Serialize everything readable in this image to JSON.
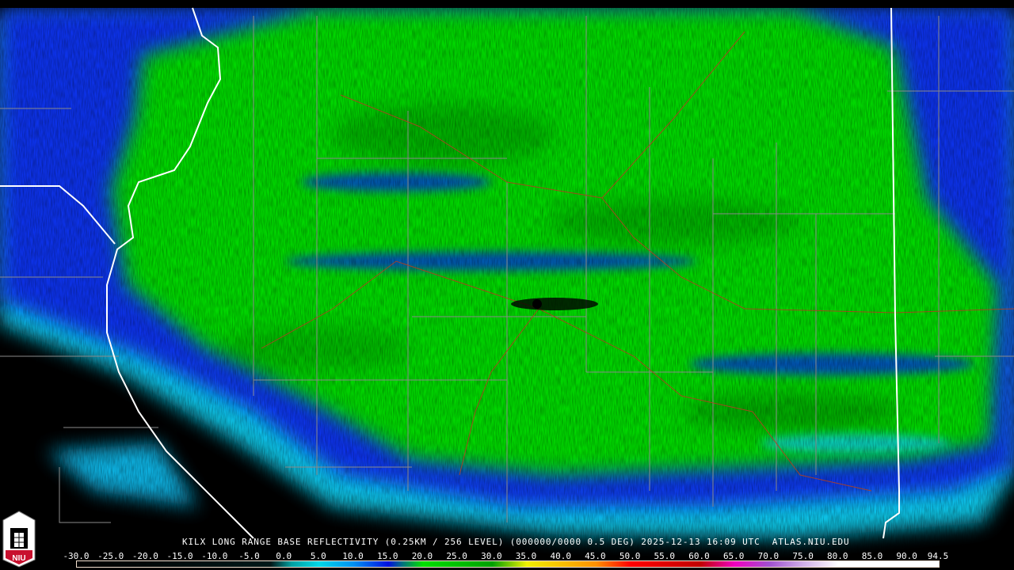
{
  "product_title": "KILX LONG RANGE BASE REFLECTIVITY (0.25KM / 256 LEVEL) (000000/0000 0.5 DEG) 2025-12-13 16:09 UTC  ATLAS.NIU.EDU",
  "logo": {
    "text": "NIU",
    "icon": "niu-castle-logo"
  },
  "colorbar": {
    "labels": [
      "-30.0",
      "-25.0",
      "-20.0",
      "-15.0",
      "-10.0",
      "-5.0",
      "0.0",
      "5.0",
      "10.0",
      "15.0",
      "20.0",
      "25.0",
      "30.0",
      "35.0",
      "40.0",
      "45.0",
      "50.0",
      "55.0",
      "60.0",
      "65.0",
      "70.0",
      "75.0",
      "80.0",
      "85.0",
      "90.0",
      "94.5"
    ],
    "min": -30.0,
    "max": 94.5,
    "stops": [
      {
        "value": -30,
        "color": "#000000"
      },
      {
        "value": -2,
        "color": "#001818"
      },
      {
        "value": 1,
        "color": "#00a0a0"
      },
      {
        "value": 5,
        "color": "#00d8e8"
      },
      {
        "value": 10,
        "color": "#0090f0"
      },
      {
        "value": 15,
        "color": "#0010e0"
      },
      {
        "value": 17,
        "color": "#007080"
      },
      {
        "value": 20,
        "color": "#00e000"
      },
      {
        "value": 30,
        "color": "#00a000"
      },
      {
        "value": 35,
        "color": "#f0f000"
      },
      {
        "value": 45,
        "color": "#ff9000"
      },
      {
        "value": 50,
        "color": "#ff0000"
      },
      {
        "value": 60,
        "color": "#c00000"
      },
      {
        "value": 65,
        "color": "#f000c0"
      },
      {
        "value": 70,
        "color": "#a050d0"
      },
      {
        "value": 75,
        "color": "#d0b0e8"
      },
      {
        "value": 80,
        "color": "#ffffff"
      },
      {
        "value": 94.5,
        "color": "#ffffff"
      }
    ]
  },
  "colors": {
    "state_border": "#ffffff",
    "county_border": "#8a8a8a",
    "highway": "#b04020",
    "background": "#000000"
  }
}
